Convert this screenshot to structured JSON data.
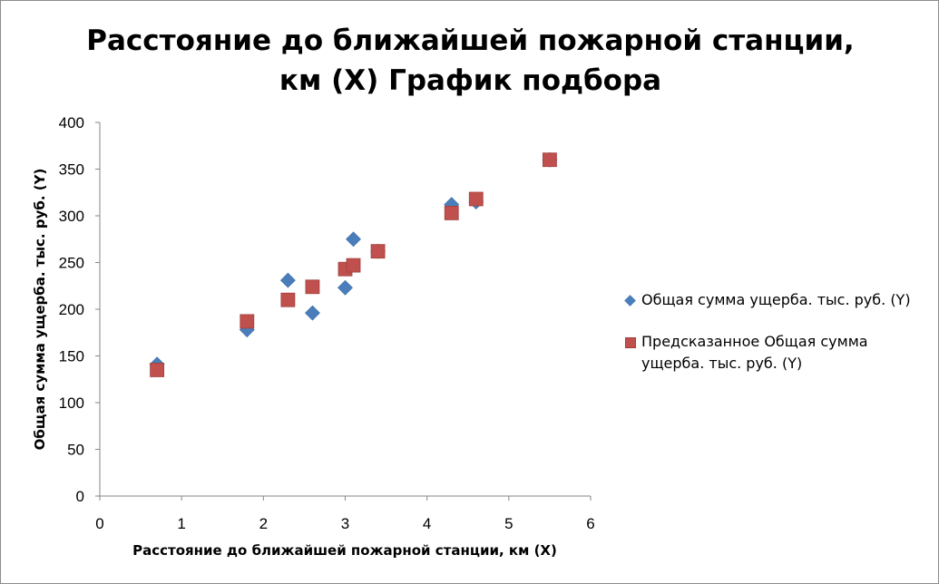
{
  "chart_data": {
    "type": "scatter",
    "title_lines": [
      "Расстояние до ближайшей пожарной станции,",
      "км (X) График подбора"
    ],
    "xlabel": "Расстояние до ближайшей пожарной станции, км (X)",
    "ylabel": "Общая сумма ущерба. тыс. руб. (Y)",
    "xlim": [
      0,
      6
    ],
    "ylim": [
      0,
      400
    ],
    "xticks": [
      "0",
      "1",
      "2",
      "3",
      "4",
      "5",
      "6"
    ],
    "yticks": [
      "0",
      "50",
      "100",
      "150",
      "200",
      "250",
      "300",
      "350",
      "400"
    ],
    "grid": false,
    "legend_position": "right",
    "series": [
      {
        "name": "Общая сумма ущерба. тыс. руб. (Y)",
        "marker": "diamond",
        "color": "#4a7ebb",
        "points": [
          [
            0.7,
            141
          ],
          [
            1.8,
            178
          ],
          [
            2.3,
            231
          ],
          [
            2.6,
            196
          ],
          [
            3.0,
            223
          ],
          [
            3.1,
            275
          ],
          [
            3.4,
            262
          ],
          [
            4.3,
            312
          ],
          [
            4.6,
            315
          ],
          [
            5.5,
            360
          ]
        ]
      },
      {
        "name": "Предсказанное Общая сумма ущерба. тыс. руб. (Y)",
        "marker": "square",
        "color": "#c0504d",
        "points": [
          [
            0.7,
            135
          ],
          [
            1.8,
            187
          ],
          [
            2.3,
            210
          ],
          [
            2.6,
            224
          ],
          [
            3.0,
            243
          ],
          [
            3.1,
            247
          ],
          [
            3.4,
            262
          ],
          [
            4.3,
            303
          ],
          [
            4.6,
            318
          ],
          [
            5.5,
            360
          ]
        ]
      }
    ]
  },
  "legend": {
    "item1": "Общая сумма ущерба. тыс. руб. (Y)",
    "item2_line1": "Предсказанное Общая сумма",
    "item2_line2": "ущерба. тыс. руб. (Y)"
  }
}
